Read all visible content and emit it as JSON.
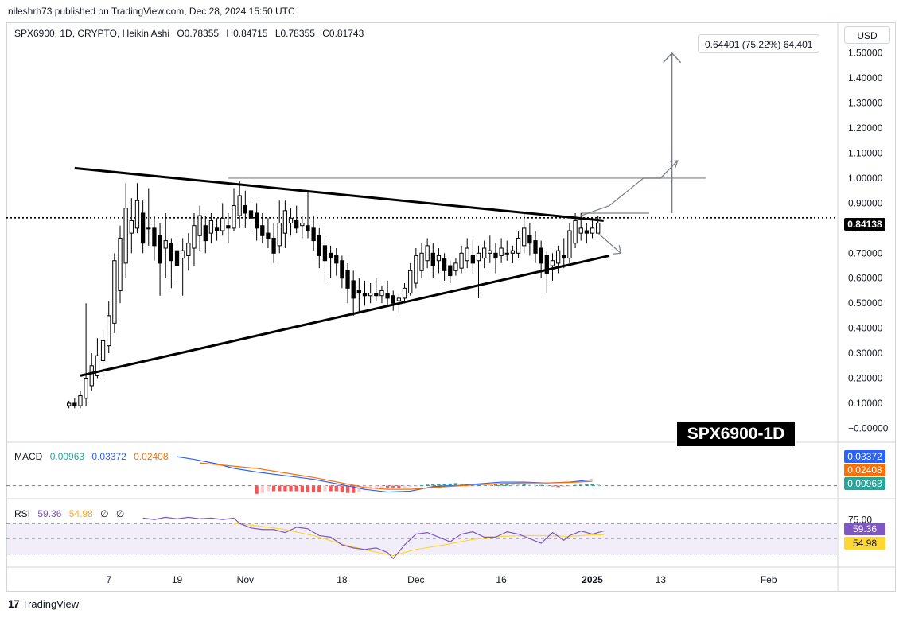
{
  "header": {
    "publisher": "nileshrh73 published on TradingView.com, Dec 28, 2024 15:50 UTC"
  },
  "legend": {
    "symbol": "SPX6900, 1D, CRYPTO, Heikin Ashi",
    "o_label": "O",
    "o_value": "0.78355",
    "h_label": "H",
    "h_value": "0.84715",
    "l_label": "L",
    "l_value": "0.78355",
    "c_label": "C",
    "c_value": "0.81743"
  },
  "currency": "USD",
  "measure_label": "0.64401 (75.22%) 64,401",
  "watermark": "SPX6900-1D",
  "macd": {
    "name": "MACD",
    "v1": "0.00963",
    "v2": "0.03372",
    "v3": "0.02408"
  },
  "rsi": {
    "name": "RSI",
    "v1": "59.36",
    "v2": "54.98",
    "v3": "∅",
    "v4": "∅"
  },
  "badges": {
    "price": "0.84138",
    "macd_line": "0.03372",
    "signal": "0.02408",
    "hist": "0.00963",
    "rsi": "59.36",
    "rsi_ma": "54.98"
  },
  "footer": {
    "logo": "17",
    "brand": "TradingView"
  },
  "colors": {
    "up": "#000000",
    "down": "#000000",
    "macd": "#2962ff",
    "signal": "#ff6d00",
    "hist_pos": "#26a69a",
    "hist_neg": "#ff5252",
    "rsi": "#7e57c2",
    "rsi_ma": "#fdd835"
  },
  "chart_data": {
    "type": "candlestick",
    "title": "SPX6900, 1D, CRYPTO, Heikin Ashi",
    "y_ticks": [
      "1.50000",
      "1.40000",
      "1.30000",
      "1.20000",
      "1.10000",
      "1.00000",
      "0.90000",
      "0.80000",
      "0.70000",
      "0.60000",
      "0.50000",
      "0.40000",
      "0.30000",
      "0.20000",
      "0.10000",
      "−0.00000"
    ],
    "y_tick_values": [
      1.5,
      1.4,
      1.3,
      1.2,
      1.1,
      1.0,
      0.9,
      0.8,
      0.7,
      0.6,
      0.5,
      0.4,
      0.3,
      0.2,
      0.1,
      0.0
    ],
    "ylim": [
      -0.04,
      1.62
    ],
    "x_ticks": [
      "7",
      "19",
      "Nov",
      "18",
      "Dec",
      "16",
      "2025",
      "13",
      "Feb"
    ],
    "x_tick_days": [
      7,
      19,
      31,
      48,
      61,
      76,
      92,
      104,
      123
    ],
    "x_tick_bold": [
      false,
      false,
      false,
      false,
      false,
      false,
      true,
      false,
      false
    ],
    "day_range": [
      -11,
      135
    ],
    "candles": [
      {
        "d": 0,
        "o": 0.09,
        "h": 0.11,
        "l": 0.08,
        "c": 0.1
      },
      {
        "d": 1,
        "o": 0.1,
        "h": 0.12,
        "l": 0.08,
        "c": 0.09
      },
      {
        "d": 2,
        "o": 0.09,
        "h": 0.15,
        "l": 0.08,
        "c": 0.13
      },
      {
        "d": 3,
        "o": 0.12,
        "h": 0.5,
        "l": 0.09,
        "c": 0.2
      },
      {
        "d": 4,
        "o": 0.17,
        "h": 0.3,
        "l": 0.15,
        "c": 0.25
      },
      {
        "d": 5,
        "o": 0.21,
        "h": 0.36,
        "l": 0.2,
        "c": 0.29
      },
      {
        "d": 6,
        "o": 0.27,
        "h": 0.39,
        "l": 0.2,
        "c": 0.35
      },
      {
        "d": 7,
        "o": 0.33,
        "h": 0.51,
        "l": 0.3,
        "c": 0.45
      },
      {
        "d": 8,
        "o": 0.42,
        "h": 0.7,
        "l": 0.38,
        "c": 0.67
      },
      {
        "d": 9,
        "o": 0.55,
        "h": 0.81,
        "l": 0.5,
        "c": 0.76
      },
      {
        "d": 10,
        "o": 0.66,
        "h": 0.98,
        "l": 0.6,
        "c": 0.88
      },
      {
        "d": 11,
        "o": 0.78,
        "h": 0.92,
        "l": 0.7,
        "c": 0.83
      },
      {
        "d": 12,
        "o": 0.8,
        "h": 0.98,
        "l": 0.78,
        "c": 0.91
      },
      {
        "d": 13,
        "o": 0.86,
        "h": 0.91,
        "l": 0.7,
        "c": 0.74
      },
      {
        "d": 14,
        "o": 0.8,
        "h": 0.96,
        "l": 0.73,
        "c": 0.8
      },
      {
        "d": 15,
        "o": 0.8,
        "h": 0.85,
        "l": 0.67,
        "c": 0.73
      },
      {
        "d": 16,
        "o": 0.77,
        "h": 0.82,
        "l": 0.53,
        "c": 0.66
      },
      {
        "d": 17,
        "o": 0.72,
        "h": 0.86,
        "l": 0.6,
        "c": 0.75
      },
      {
        "d": 18,
        "o": 0.74,
        "h": 0.76,
        "l": 0.56,
        "c": 0.67
      },
      {
        "d": 19,
        "o": 0.71,
        "h": 0.75,
        "l": 0.58,
        "c": 0.65
      },
      {
        "d": 20,
        "o": 0.68,
        "h": 0.76,
        "l": 0.53,
        "c": 0.71
      },
      {
        "d": 21,
        "o": 0.69,
        "h": 0.78,
        "l": 0.63,
        "c": 0.74
      },
      {
        "d": 22,
        "o": 0.72,
        "h": 0.86,
        "l": 0.65,
        "c": 0.81
      },
      {
        "d": 23,
        "o": 0.77,
        "h": 0.89,
        "l": 0.71,
        "c": 0.85
      },
      {
        "d": 24,
        "o": 0.81,
        "h": 0.85,
        "l": 0.7,
        "c": 0.75
      },
      {
        "d": 25,
        "o": 0.78,
        "h": 0.86,
        "l": 0.74,
        "c": 0.83
      },
      {
        "d": 26,
        "o": 0.8,
        "h": 0.84,
        "l": 0.75,
        "c": 0.79
      },
      {
        "d": 27,
        "o": 0.79,
        "h": 0.9,
        "l": 0.77,
        "c": 0.84
      },
      {
        "d": 28,
        "o": 0.81,
        "h": 0.86,
        "l": 0.74,
        "c": 0.8
      },
      {
        "d": 29,
        "o": 0.8,
        "h": 0.96,
        "l": 0.79,
        "c": 0.89
      },
      {
        "d": 30,
        "o": 0.85,
        "h": 0.99,
        "l": 0.8,
        "c": 0.93
      },
      {
        "d": 31,
        "o": 0.89,
        "h": 0.95,
        "l": 0.8,
        "c": 0.86
      },
      {
        "d": 32,
        "o": 0.87,
        "h": 0.92,
        "l": 0.79,
        "c": 0.84
      },
      {
        "d": 33,
        "o": 0.86,
        "h": 0.9,
        "l": 0.75,
        "c": 0.8
      },
      {
        "d": 34,
        "o": 0.81,
        "h": 0.86,
        "l": 0.74,
        "c": 0.77
      },
      {
        "d": 35,
        "o": 0.78,
        "h": 0.84,
        "l": 0.72,
        "c": 0.76
      },
      {
        "d": 36,
        "o": 0.76,
        "h": 0.82,
        "l": 0.66,
        "c": 0.7
      },
      {
        "d": 37,
        "o": 0.73,
        "h": 0.91,
        "l": 0.7,
        "c": 0.82
      },
      {
        "d": 38,
        "o": 0.78,
        "h": 0.91,
        "l": 0.72,
        "c": 0.87
      },
      {
        "d": 39,
        "o": 0.82,
        "h": 0.88,
        "l": 0.77,
        "c": 0.84
      },
      {
        "d": 40,
        "o": 0.83,
        "h": 0.89,
        "l": 0.78,
        "c": 0.8
      },
      {
        "d": 41,
        "o": 0.81,
        "h": 0.85,
        "l": 0.76,
        "c": 0.82
      },
      {
        "d": 42,
        "o": 0.81,
        "h": 0.95,
        "l": 0.76,
        "c": 0.79
      },
      {
        "d": 43,
        "o": 0.8,
        "h": 0.85,
        "l": 0.71,
        "c": 0.75
      },
      {
        "d": 44,
        "o": 0.77,
        "h": 0.8,
        "l": 0.64,
        "c": 0.69
      },
      {
        "d": 45,
        "o": 0.73,
        "h": 0.76,
        "l": 0.58,
        "c": 0.67
      },
      {
        "d": 46,
        "o": 0.7,
        "h": 0.73,
        "l": 0.6,
        "c": 0.68
      },
      {
        "d": 47,
        "o": 0.69,
        "h": 0.72,
        "l": 0.61,
        "c": 0.66
      },
      {
        "d": 48,
        "o": 0.67,
        "h": 0.69,
        "l": 0.56,
        "c": 0.6
      },
      {
        "d": 49,
        "o": 0.63,
        "h": 0.66,
        "l": 0.5,
        "c": 0.56
      },
      {
        "d": 50,
        "o": 0.59,
        "h": 0.63,
        "l": 0.45,
        "c": 0.52
      },
      {
        "d": 51,
        "o": 0.55,
        "h": 0.6,
        "l": 0.46,
        "c": 0.54
      },
      {
        "d": 52,
        "o": 0.54,
        "h": 0.59,
        "l": 0.49,
        "c": 0.53
      },
      {
        "d": 53,
        "o": 0.53,
        "h": 0.58,
        "l": 0.5,
        "c": 0.54
      },
      {
        "d": 54,
        "o": 0.54,
        "h": 0.6,
        "l": 0.51,
        "c": 0.53
      },
      {
        "d": 55,
        "o": 0.53,
        "h": 0.57,
        "l": 0.5,
        "c": 0.55
      },
      {
        "d": 56,
        "o": 0.54,
        "h": 0.59,
        "l": 0.49,
        "c": 0.52
      },
      {
        "d": 57,
        "o": 0.53,
        "h": 0.55,
        "l": 0.47,
        "c": 0.5
      },
      {
        "d": 58,
        "o": 0.51,
        "h": 0.54,
        "l": 0.46,
        "c": 0.52
      },
      {
        "d": 59,
        "o": 0.52,
        "h": 0.58,
        "l": 0.5,
        "c": 0.56
      },
      {
        "d": 60,
        "o": 0.54,
        "h": 0.66,
        "l": 0.53,
        "c": 0.63
      },
      {
        "d": 61,
        "o": 0.58,
        "h": 0.72,
        "l": 0.56,
        "c": 0.69
      },
      {
        "d": 62,
        "o": 0.63,
        "h": 0.74,
        "l": 0.6,
        "c": 0.7
      },
      {
        "d": 63,
        "o": 0.67,
        "h": 0.76,
        "l": 0.64,
        "c": 0.73
      },
      {
        "d": 64,
        "o": 0.7,
        "h": 0.74,
        "l": 0.6,
        "c": 0.65
      },
      {
        "d": 65,
        "o": 0.67,
        "h": 0.72,
        "l": 0.62,
        "c": 0.69
      },
      {
        "d": 66,
        "o": 0.68,
        "h": 0.7,
        "l": 0.59,
        "c": 0.63
      },
      {
        "d": 67,
        "o": 0.65,
        "h": 0.67,
        "l": 0.58,
        "c": 0.61
      },
      {
        "d": 68,
        "o": 0.63,
        "h": 0.68,
        "l": 0.61,
        "c": 0.66
      },
      {
        "d": 69,
        "o": 0.64,
        "h": 0.73,
        "l": 0.62,
        "c": 0.7
      },
      {
        "d": 70,
        "o": 0.67,
        "h": 0.76,
        "l": 0.64,
        "c": 0.72
      },
      {
        "d": 71,
        "o": 0.69,
        "h": 0.75,
        "l": 0.62,
        "c": 0.66
      },
      {
        "d": 72,
        "o": 0.67,
        "h": 0.73,
        "l": 0.52,
        "c": 0.7
      },
      {
        "d": 73,
        "o": 0.68,
        "h": 0.75,
        "l": 0.64,
        "c": 0.72
      },
      {
        "d": 74,
        "o": 0.7,
        "h": 0.77,
        "l": 0.66,
        "c": 0.71
      },
      {
        "d": 75,
        "o": 0.7,
        "h": 0.74,
        "l": 0.62,
        "c": 0.68
      },
      {
        "d": 76,
        "o": 0.69,
        "h": 0.76,
        "l": 0.66,
        "c": 0.72
      },
      {
        "d": 77,
        "o": 0.7,
        "h": 0.75,
        "l": 0.67,
        "c": 0.7
      },
      {
        "d": 78,
        "o": 0.7,
        "h": 0.73,
        "l": 0.66,
        "c": 0.71
      },
      {
        "d": 79,
        "o": 0.7,
        "h": 0.79,
        "l": 0.68,
        "c": 0.76
      },
      {
        "d": 80,
        "o": 0.73,
        "h": 0.86,
        "l": 0.7,
        "c": 0.8
      },
      {
        "d": 81,
        "o": 0.77,
        "h": 0.82,
        "l": 0.69,
        "c": 0.74
      },
      {
        "d": 82,
        "o": 0.75,
        "h": 0.79,
        "l": 0.66,
        "c": 0.7
      },
      {
        "d": 83,
        "o": 0.72,
        "h": 0.75,
        "l": 0.6,
        "c": 0.66
      },
      {
        "d": 84,
        "o": 0.69,
        "h": 0.71,
        "l": 0.54,
        "c": 0.62
      },
      {
        "d": 85,
        "o": 0.65,
        "h": 0.7,
        "l": 0.59,
        "c": 0.67
      },
      {
        "d": 86,
        "o": 0.66,
        "h": 0.73,
        "l": 0.62,
        "c": 0.71
      },
      {
        "d": 87,
        "o": 0.69,
        "h": 0.76,
        "l": 0.64,
        "c": 0.68
      },
      {
        "d": 88,
        "o": 0.68,
        "h": 0.82,
        "l": 0.66,
        "c": 0.79
      },
      {
        "d": 89,
        "o": 0.74,
        "h": 0.86,
        "l": 0.72,
        "c": 0.83
      },
      {
        "d": 90,
        "o": 0.78,
        "h": 0.86,
        "l": 0.75,
        "c": 0.8
      },
      {
        "d": 91,
        "o": 0.79,
        "h": 0.82,
        "l": 0.74,
        "c": 0.78
      },
      {
        "d": 92,
        "o": 0.78,
        "h": 0.83,
        "l": 0.76,
        "c": 0.8
      },
      {
        "d": 93,
        "o": 0.78,
        "h": 0.85,
        "l": 0.78,
        "c": 0.82
      }
    ],
    "resistance_line": [
      [
        1,
        1.04
      ],
      [
        94,
        0.83
      ]
    ],
    "support_line": [
      [
        2,
        0.21
      ],
      [
        95,
        0.69
      ]
    ],
    "horizontal_lines": [
      {
        "from": 28,
        "to": 112,
        "y": 1.0
      },
      {
        "from": 90,
        "to": 102,
        "y": 0.86
      }
    ],
    "last_price": 0.84138,
    "projection_up": [
      [
        90,
        0.85
      ],
      [
        95,
        0.89
      ],
      [
        101,
        1.0
      ],
      [
        104,
        1.0
      ],
      [
        107,
        1.07
      ]
    ],
    "projection_down": [
      [
        93,
        0.78
      ],
      [
        97,
        0.7
      ]
    ],
    "target_arrow": {
      "x": 106,
      "from": 0.86,
      "to": 1.5
    },
    "measure": "0.64401 (75.22%) 64,401",
    "macd": {
      "range": [
        -0.05,
        0.2
      ],
      "macd_line": [
        [
          19,
          0.16
        ],
        [
          22,
          0.145
        ],
        [
          26,
          0.12
        ],
        [
          29,
          0.095
        ],
        [
          33,
          0.075
        ],
        [
          38,
          0.055
        ],
        [
          43,
          0.035
        ],
        [
          48,
          0.005
        ],
        [
          52,
          -0.02
        ],
        [
          56,
          -0.035
        ],
        [
          60,
          -0.03
        ],
        [
          64,
          -0.005
        ],
        [
          68,
          0.0
        ],
        [
          72,
          0.01
        ],
        [
          76,
          0.02
        ],
        [
          80,
          0.02
        ],
        [
          84,
          0.015
        ],
        [
          88,
          0.02
        ],
        [
          92,
          0.033
        ]
      ],
      "signal_line": [
        [
          23,
          0.125
        ],
        [
          28,
          0.11
        ],
        [
          33,
          0.095
        ],
        [
          38,
          0.07
        ],
        [
          43,
          0.045
        ],
        [
          48,
          0.015
        ],
        [
          52,
          -0.01
        ],
        [
          56,
          -0.02
        ],
        [
          60,
          -0.02
        ],
        [
          64,
          -0.01
        ],
        [
          68,
          -0.002
        ],
        [
          72,
          0.005
        ],
        [
          76,
          0.012
        ],
        [
          80,
          0.015
        ],
        [
          84,
          0.015
        ],
        [
          88,
          0.018
        ],
        [
          92,
          0.024
        ]
      ],
      "histogram": [
        -0.045,
        -0.04,
        -0.03,
        -0.03,
        -0.03,
        -0.03,
        -0.03,
        -0.03,
        -0.035,
        -0.035,
        -0.035,
        -0.035,
        -0.03,
        -0.03,
        -0.03,
        -0.035,
        -0.04,
        -0.04,
        -0.035,
        -0.025,
        -0.02,
        -0.015,
        -0.01,
        -0.01,
        -0.01,
        -0.012,
        -0.01,
        -0.008,
        -0.005,
        0.002,
        0.006,
        0.008,
        0.01,
        0.01,
        0.012,
        0.014,
        0.012,
        0.01,
        0.008,
        0.01,
        0.008,
        0.006,
        0.008,
        0.01,
        0.012,
        0.01,
        0.008,
        0.008,
        0.006,
        0.004,
        0.004,
        0.003,
        -0.004,
        -0.008,
        -0.006,
        -0.004,
        0.004,
        0.006,
        0.008,
        0.01,
        0.009
      ]
    },
    "rsi": {
      "ticks": [
        "75.00"
      ],
      "range": [
        15,
        95
      ],
      "rsi_line": [
        [
          13,
          77
        ],
        [
          15,
          75
        ],
        [
          17,
          78
        ],
        [
          19,
          76
        ],
        [
          21,
          78
        ],
        [
          23,
          76
        ],
        [
          25,
          77
        ],
        [
          27,
          75
        ],
        [
          29,
          77
        ],
        [
          30,
          70
        ],
        [
          32,
          64
        ],
        [
          34,
          62
        ],
        [
          36,
          62
        ],
        [
          38,
          58
        ],
        [
          40,
          65
        ],
        [
          42,
          63
        ],
        [
          44,
          54
        ],
        [
          46,
          52
        ],
        [
          48,
          42
        ],
        [
          50,
          38
        ],
        [
          52,
          36
        ],
        [
          54,
          38
        ],
        [
          56,
          32
        ],
        [
          57,
          24
        ],
        [
          59,
          42
        ],
        [
          61,
          56
        ],
        [
          63,
          58
        ],
        [
          65,
          52
        ],
        [
          67,
          46
        ],
        [
          69,
          56
        ],
        [
          71,
          59
        ],
        [
          73,
          52
        ],
        [
          75,
          52
        ],
        [
          77,
          59
        ],
        [
          79,
          56
        ],
        [
          81,
          50
        ],
        [
          83,
          44
        ],
        [
          85,
          58
        ],
        [
          87,
          48
        ],
        [
          88,
          54
        ],
        [
          90,
          60
        ],
        [
          92,
          56
        ],
        [
          94,
          60
        ]
      ],
      "rsi_ma": [
        [
          29,
          70
        ],
        [
          33,
          67
        ],
        [
          38,
          62
        ],
        [
          43,
          54
        ],
        [
          48,
          43
        ],
        [
          53,
          34
        ],
        [
          57,
          28
        ],
        [
          61,
          36
        ],
        [
          66,
          42
        ],
        [
          71,
          49
        ],
        [
          76,
          53
        ],
        [
          80,
          54
        ],
        [
          84,
          54
        ],
        [
          88,
          53
        ],
        [
          92,
          55
        ],
        [
          94,
          55
        ]
      ]
    }
  }
}
